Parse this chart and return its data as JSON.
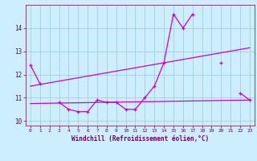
{
  "x": [
    0,
    1,
    2,
    3,
    4,
    5,
    6,
    7,
    8,
    9,
    10,
    11,
    12,
    13,
    14,
    15,
    16,
    17,
    18,
    19,
    20,
    21,
    22,
    23
  ],
  "line1": [
    12.4,
    11.6,
    null,
    10.8,
    10.5,
    10.4,
    10.4,
    10.9,
    10.8,
    10.8,
    10.5,
    10.5,
    11.0,
    11.5,
    12.5,
    14.6,
    14.0,
    14.6,
    null,
    null,
    12.5,
    null,
    11.2,
    10.9
  ],
  "line2_x": [
    0,
    23
  ],
  "line2_y": [
    11.5,
    13.15
  ],
  "line3_x": [
    0,
    23
  ],
  "line3_y": [
    10.75,
    10.9
  ],
  "bg_color": "#cceeff",
  "line_color": "#cc00cc",
  "grid_color": "#99cccc",
  "axis_color": "#660066",
  "xlabel": "Windchill (Refroidissement éolien,°C)",
  "xlim": [
    -0.5,
    23.5
  ],
  "ylim": [
    9.8,
    15.0
  ],
  "yticks": [
    10,
    11,
    12,
    13,
    14
  ],
  "xticks": [
    0,
    1,
    2,
    3,
    4,
    5,
    6,
    7,
    8,
    9,
    10,
    11,
    12,
    13,
    14,
    15,
    16,
    17,
    18,
    19,
    20,
    21,
    22,
    23
  ],
  "lw": 0.9,
  "marker": "+",
  "ms": 3.5,
  "mew": 0.9
}
